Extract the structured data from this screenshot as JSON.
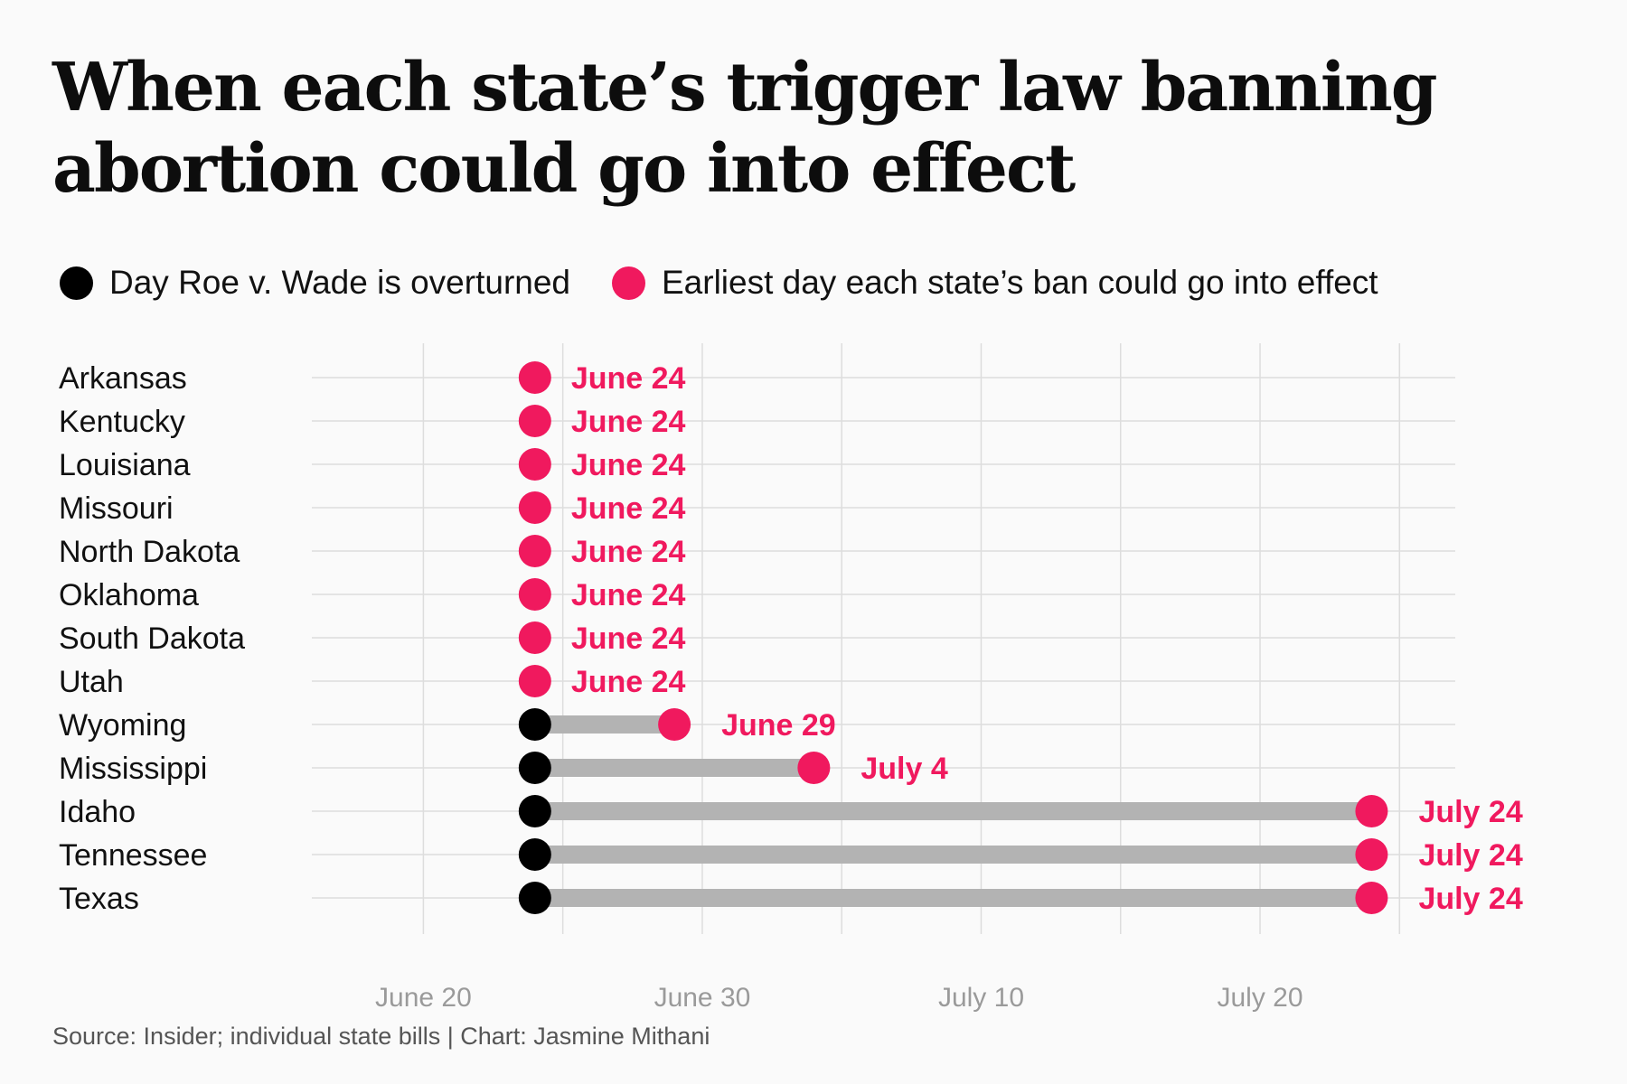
{
  "title": "When each state’s trigger law banning abortion could go into effect",
  "legend": {
    "overturned": "Day Roe v. Wade is overturned",
    "earliest": "Earliest day each state’s ban could go into effect"
  },
  "source": "Source: Insider; individual state bills | Chart: Jasmine Mithani",
  "colors": {
    "overturned": "#000000",
    "earliest": "#f0195e",
    "bar": "#b3b3b3",
    "grid": "#dddddd",
    "axis_text": "#9a9a9a"
  },
  "chart_data": {
    "type": "dumbbell",
    "title": "When each state’s trigger law banning abortion could go into effect",
    "x_axis": {
      "type": "date",
      "range": [
        "2022-06-16",
        "2022-07-27"
      ],
      "ticks": [
        {
          "date": "2022-06-20",
          "label": "June 20"
        },
        {
          "date": "2022-06-30",
          "label": "June 30"
        },
        {
          "date": "2022-07-10",
          "label": "July 10"
        },
        {
          "date": "2022-07-20",
          "label": "July 20"
        }
      ]
    },
    "grid": true,
    "legend_position": "top-left",
    "overturned_date": "2022-06-24",
    "series": [
      {
        "name": "Day Roe v. Wade is overturned",
        "color": "#000000"
      },
      {
        "name": "Earliest day each state’s ban could go into effect",
        "color": "#f0195e"
      }
    ],
    "rows": [
      {
        "state": "Arkansas",
        "start": "2022-06-24",
        "end": "2022-06-24",
        "label": "June 24"
      },
      {
        "state": "Kentucky",
        "start": "2022-06-24",
        "end": "2022-06-24",
        "label": "June 24"
      },
      {
        "state": "Louisiana",
        "start": "2022-06-24",
        "end": "2022-06-24",
        "label": "June 24"
      },
      {
        "state": "Missouri",
        "start": "2022-06-24",
        "end": "2022-06-24",
        "label": "June 24"
      },
      {
        "state": "North Dakota",
        "start": "2022-06-24",
        "end": "2022-06-24",
        "label": "June 24"
      },
      {
        "state": "Oklahoma",
        "start": "2022-06-24",
        "end": "2022-06-24",
        "label": "June 24"
      },
      {
        "state": "South Dakota",
        "start": "2022-06-24",
        "end": "2022-06-24",
        "label": "June 24"
      },
      {
        "state": "Utah",
        "start": "2022-06-24",
        "end": "2022-06-24",
        "label": "June 24"
      },
      {
        "state": "Wyoming",
        "start": "2022-06-24",
        "end": "2022-06-29",
        "label": "June 29"
      },
      {
        "state": "Mississippi",
        "start": "2022-06-24",
        "end": "2022-07-04",
        "label": "July 4"
      },
      {
        "state": "Idaho",
        "start": "2022-06-24",
        "end": "2022-07-24",
        "label": "July 24"
      },
      {
        "state": "Tennessee",
        "start": "2022-06-24",
        "end": "2022-07-24",
        "label": "July 24"
      },
      {
        "state": "Texas",
        "start": "2022-06-24",
        "end": "2022-07-24",
        "label": "July 24"
      }
    ]
  }
}
